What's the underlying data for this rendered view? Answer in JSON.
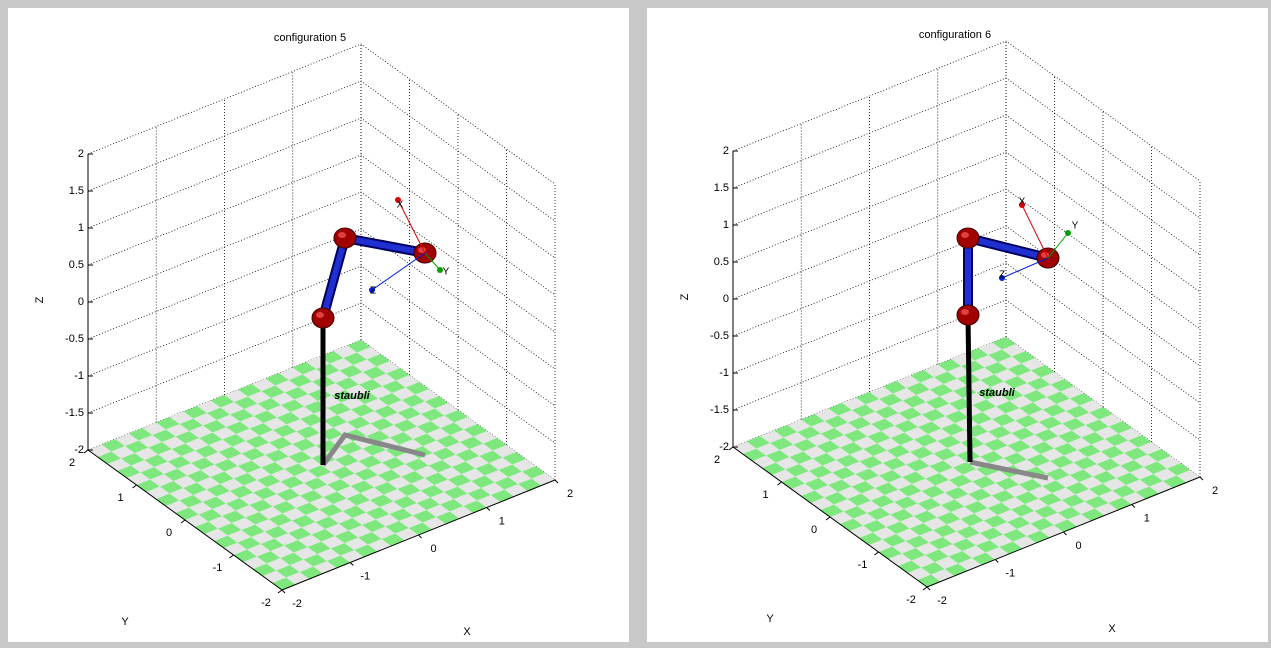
{
  "chart_data": [
    {
      "type": "robot3d",
      "title": "configuration 5",
      "xlabel": "X",
      "ylabel": "Y",
      "zlabel": "Z",
      "xlim": [
        -2,
        2
      ],
      "ylim": [
        -2,
        2
      ],
      "zlim": [
        -2,
        2
      ],
      "xticks": [
        -2,
        -1,
        0,
        1,
        2
      ],
      "yticks": [
        -2,
        -1,
        0,
        1,
        2
      ],
      "zticks": [
        -2,
        -1.5,
        -1,
        -0.5,
        0,
        0.5,
        1,
        1.5,
        2
      ],
      "grid": true,
      "floor_colors": [
        "#7ee87e",
        "#e6e6e6"
      ],
      "robot_name": "staubli",
      "frame_labels": [
        "X",
        "Y",
        "Z"
      ]
    },
    {
      "type": "robot3d",
      "title": "configuration 6",
      "xlabel": "X",
      "ylabel": "Y",
      "zlabel": "Z",
      "xlim": [
        -2,
        2
      ],
      "ylim": [
        -2,
        2
      ],
      "zlim": [
        -2,
        2
      ],
      "xticks": [
        -2,
        -1,
        0,
        1,
        2
      ],
      "yticks": [
        -2,
        -1,
        0,
        1,
        2
      ],
      "zticks": [
        -2,
        -1.5,
        -1,
        -0.5,
        0,
        0.5,
        1,
        1.5,
        2
      ],
      "grid": true,
      "floor_colors": [
        "#7ee87e",
        "#e6e6e6"
      ],
      "robot_name": "staubli",
      "frame_labels": [
        "X",
        "Y",
        "Z"
      ]
    }
  ]
}
